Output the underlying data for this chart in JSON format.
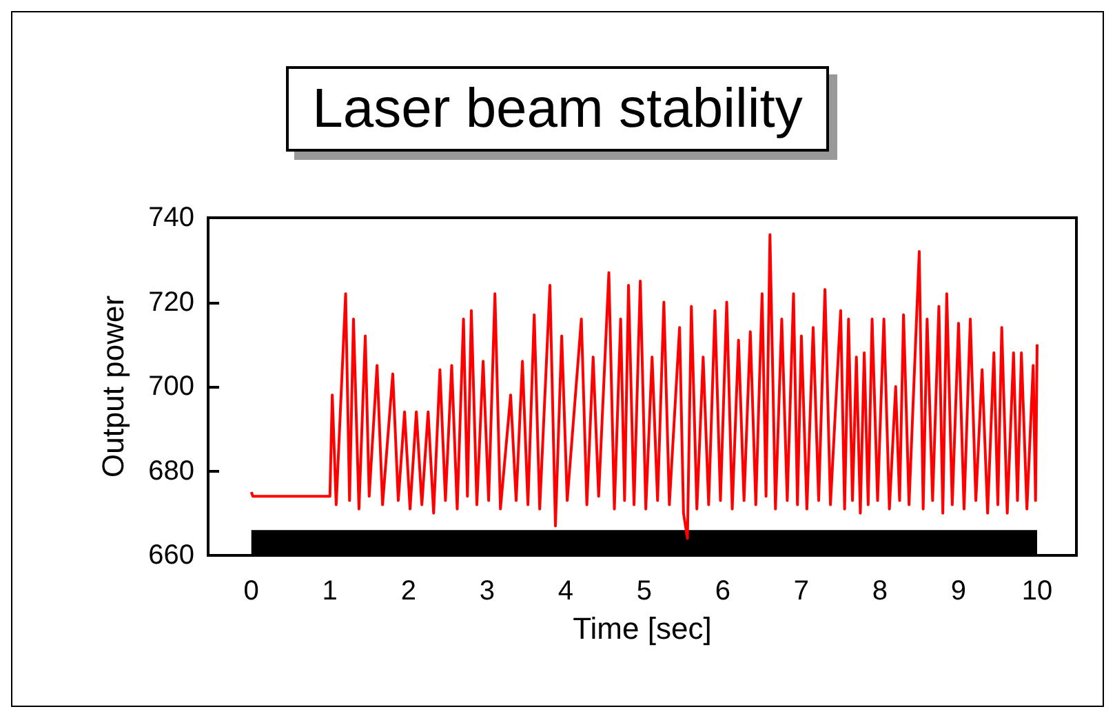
{
  "chart_data": {
    "type": "line",
    "title": "Laser beam stability",
    "xlabel": "Time [sec]",
    "ylabel": "Output power",
    "xlim": [
      -0.55,
      10.5
    ],
    "ylim": [
      660,
      740
    ],
    "xticks": [
      0,
      1,
      2,
      3,
      4,
      5,
      6,
      7,
      8,
      9,
      10
    ],
    "yticks": [
      660,
      680,
      700,
      720,
      740
    ],
    "grid": false,
    "marker": "none",
    "line_style": "solid",
    "bands": [
      {
        "axis": "y",
        "from": 660,
        "to": 666,
        "color": "#000000"
      }
    ],
    "series": [
      {
        "color": "#ff0000",
        "x": [
          0,
          0.02,
          1.0,
          1.03,
          1.08,
          1.2,
          1.25,
          1.3,
          1.37,
          1.45,
          1.5,
          1.6,
          1.67,
          1.8,
          1.87,
          1.95,
          2.02,
          2.1,
          2.17,
          2.25,
          2.32,
          2.4,
          2.47,
          2.55,
          2.62,
          2.7,
          2.75,
          2.8,
          2.87,
          2.95,
          3.02,
          3.1,
          3.17,
          3.3,
          3.37,
          3.45,
          3.52,
          3.6,
          3.67,
          3.8,
          3.87,
          3.95,
          4.02,
          4.2,
          4.27,
          4.35,
          4.42,
          4.55,
          4.62,
          4.7,
          4.75,
          4.8,
          4.87,
          4.95,
          5.02,
          5.1,
          5.17,
          5.25,
          5.32,
          5.45,
          5.5,
          5.55,
          5.6,
          5.67,
          5.75,
          5.82,
          5.9,
          5.97,
          6.05,
          6.12,
          6.2,
          6.27,
          6.35,
          6.42,
          6.5,
          6.55,
          6.6,
          6.67,
          6.75,
          6.82,
          6.9,
          6.95,
          7.0,
          7.07,
          7.15,
          7.22,
          7.3,
          7.37,
          7.5,
          7.55,
          7.6,
          7.65,
          7.7,
          7.75,
          7.8,
          7.85,
          7.9,
          7.97,
          8.05,
          8.12,
          8.2,
          8.25,
          8.3,
          8.37,
          8.5,
          8.55,
          8.6,
          8.67,
          8.75,
          8.8,
          8.85,
          8.92,
          9.0,
          9.07,
          9.15,
          9.22,
          9.3,
          9.37,
          9.45,
          9.5,
          9.55,
          9.62,
          9.7,
          9.75,
          9.8,
          9.87,
          9.95,
          9.98,
          10.0
        ],
        "values": [
          675,
          674,
          674,
          698,
          672,
          722,
          673,
          716,
          671,
          712,
          674,
          705,
          672,
          703,
          673,
          694,
          671,
          694,
          672,
          694,
          670,
          704,
          673,
          705,
          671,
          716,
          674,
          718,
          672,
          706,
          673,
          722,
          671,
          698,
          673,
          706,
          672,
          717,
          671,
          724,
          667,
          712,
          673,
          716,
          672,
          707,
          674,
          727,
          671,
          716,
          673,
          724,
          672,
          725,
          671,
          707,
          673,
          720,
          672,
          714,
          670,
          664,
          719,
          671,
          707,
          672,
          718,
          673,
          720,
          671,
          711,
          673,
          713,
          672,
          722,
          674,
          736,
          671,
          716,
          673,
          722,
          672,
          712,
          671,
          714,
          673,
          723,
          672,
          718,
          671,
          716,
          673,
          707,
          670,
          708,
          672,
          716,
          673,
          716,
          671,
          700,
          673,
          717,
          672,
          732,
          671,
          716,
          673,
          719,
          670,
          722,
          672,
          715,
          671,
          716,
          673,
          704,
          670,
          708,
          672,
          714,
          670,
          708,
          673,
          708,
          671,
          705,
          673,
          710
        ]
      }
    ]
  }
}
